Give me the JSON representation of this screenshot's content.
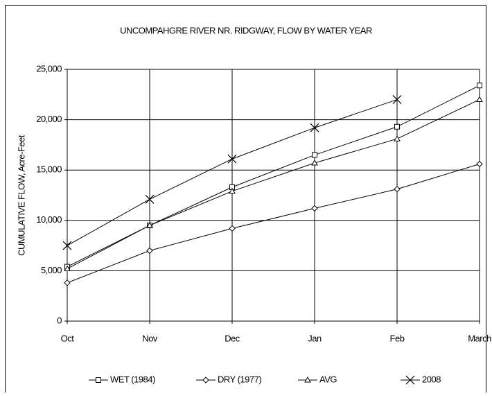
{
  "chart_data": {
    "type": "line",
    "title": "UNCOMPAHGRE RIVER NR. RIDGWAY, FLOW BY WATER YEAR",
    "y_label": "CUMULATIVE FLOW, Acre-Feet",
    "categories": [
      "Oct",
      "Nov",
      "Dec",
      "Jan",
      "Feb",
      "March"
    ],
    "series": [
      {
        "name": "WET (1984)",
        "color": "#000000",
        "marker": "square",
        "values": [
          5400,
          9500,
          13300,
          16500,
          19300,
          23400
        ]
      },
      {
        "name": "DRY (1977)",
        "color": "#000000",
        "marker": "diamond",
        "values": [
          3800,
          7000,
          9200,
          11200,
          13100,
          15600
        ]
      },
      {
        "name": "AVG",
        "color": "#000000",
        "marker": "triangle",
        "values": [
          5200,
          9500,
          12900,
          15700,
          18100,
          22000
        ]
      },
      {
        "name": "2008",
        "color": "#000000",
        "marker": "x",
        "values": [
          7500,
          12100,
          16100,
          19200,
          22000,
          null
        ]
      }
    ],
    "ylim": [
      0,
      25000
    ],
    "yticks": [
      0,
      {
        "value": 5000,
        "label": "5,000"
      },
      {
        "value": 10000,
        "label": "10,000"
      },
      {
        "value": 15000,
        "label": "15,000"
      },
      {
        "value": 20000,
        "label": "20,000"
      },
      {
        "value": 25000,
        "label": "25,000"
      }
    ],
    "grid": true,
    "legend": "bottom"
  }
}
